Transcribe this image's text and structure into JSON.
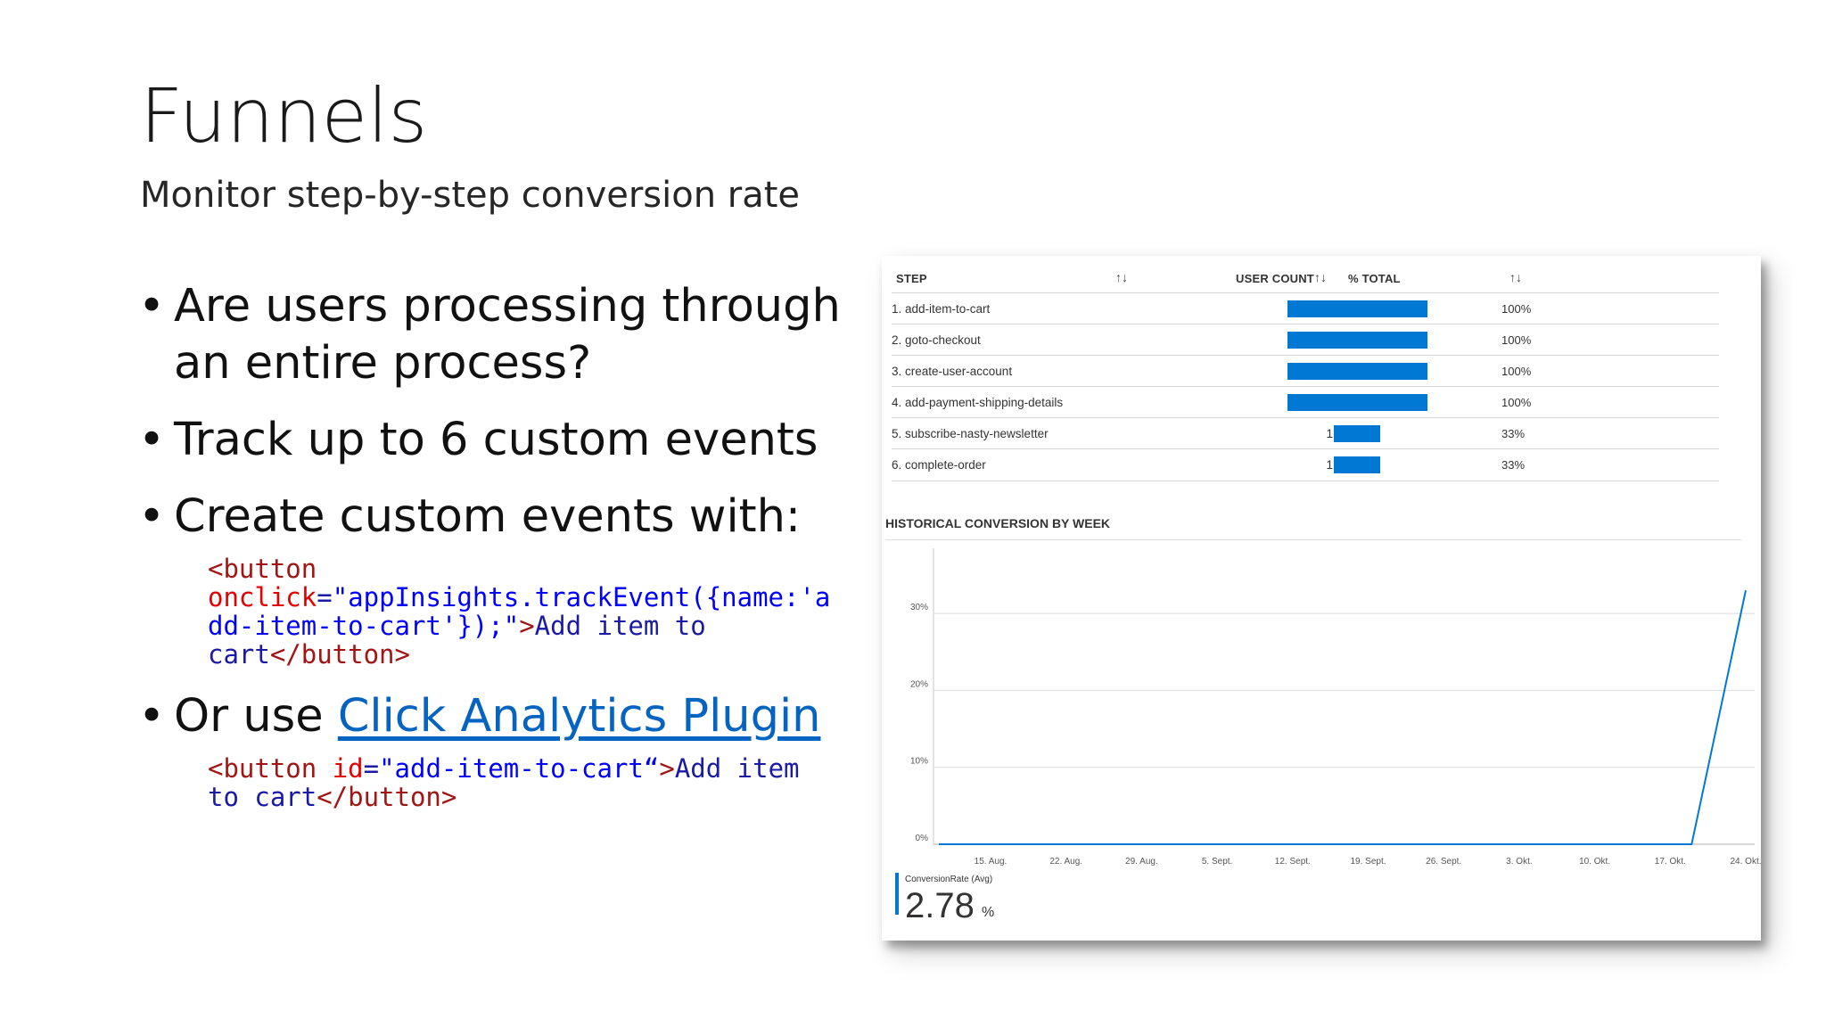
{
  "slide": {
    "title": "Funnels",
    "subtitle": "Monitor step-by-step conversion rate",
    "bullet_char": "•",
    "bullets": [
      "Are users processing through an entire process?",
      "Track up to 6 custom events",
      "Create custom events with:"
    ],
    "code1": {
      "l1": "<button",
      "l2_attr": "onclick",
      "l2_eq": "=",
      "l2_str": "\"appInsights.trackEvent({name:'a",
      "l3_str": "dd-item-to-cart'});\"",
      "l3_close": ">",
      "l3_text": "Add item to",
      "l4_text": "cart",
      "l4_tag": "</button>"
    },
    "bullet4_prefix": "Or use ",
    "bullet4_link": "Click Analytics Plugin",
    "code2": {
      "open": "<button",
      "attr": "id",
      "eq": "=",
      "str": "\"add-item-to-cart“",
      "close": ">",
      "text1": "Add item",
      "text2": "to cart",
      "endtag": "</button>"
    }
  },
  "funnel": {
    "headers": {
      "step": "STEP",
      "user_count": "USER COUNT",
      "total": "% TOTAL",
      "sort_icon": "↑↓"
    },
    "steps": [
      {
        "label": "1. add-item-to-cart",
        "count": "3",
        "pct_label": "100%",
        "pct": 100
      },
      {
        "label": "2. goto-checkout",
        "count": "3",
        "pct_label": "100%",
        "pct": 100
      },
      {
        "label": "3. create-user-account",
        "count": "3",
        "pct_label": "100%",
        "pct": 100
      },
      {
        "label": "4. add-payment-shipping-details",
        "count": "3",
        "pct_label": "100%",
        "pct": 100
      },
      {
        "label": "5. subscribe-nasty-newsletter",
        "count": "1",
        "pct_label": "33%",
        "pct": 33
      },
      {
        "label": "6. complete-order",
        "count": "1",
        "pct_label": "33%",
        "pct": 33
      }
    ],
    "history_title": "HISTORICAL CONVERSION BY WEEK",
    "metric": {
      "label": "ConversionRate (Avg)",
      "value": "2.78",
      "unit": "%"
    },
    "colors": {
      "bar": "#0078d4"
    }
  },
  "chart_data": {
    "type": "line",
    "x": [
      "15. Aug.",
      "22. Aug.",
      "29. Aug.",
      "5. Sept.",
      "12. Sept.",
      "19. Sept.",
      "26. Sept.",
      "3. Okt.",
      "10. Okt.",
      "17. Okt.",
      "24. Okt."
    ],
    "series": [
      {
        "values": [
          0,
          0,
          0,
          0,
          0,
          0,
          0,
          0,
          0,
          0,
          33
        ]
      }
    ],
    "y_ticks": [
      "0%",
      "10%",
      "20%",
      "30%"
    ],
    "ylim": [
      0,
      35
    ],
    "grid": true,
    "line_color": "#0078d4"
  }
}
